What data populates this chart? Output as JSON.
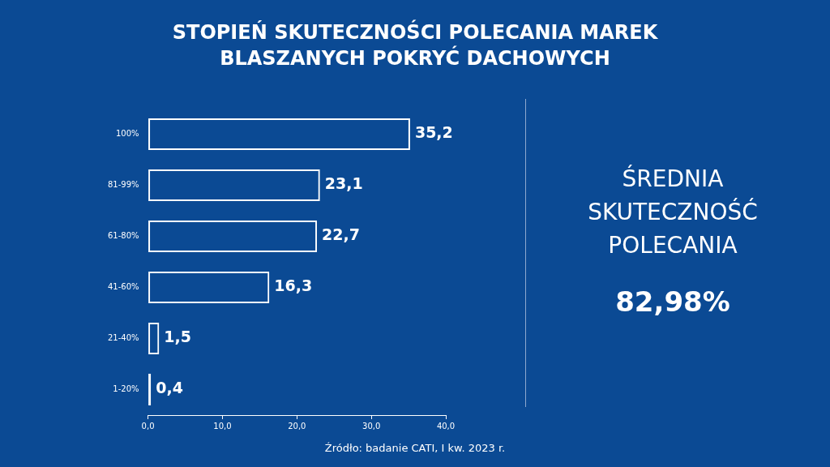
{
  "chart_data": {
    "type": "bar",
    "orientation": "horizontal",
    "title": "STOPIEŃ SKUTECZNOŚCI POLECANIA MAREK BLASZANYCH POKRYĆ DACHOWYCH",
    "categories": [
      "100%",
      "81-99%",
      "61-80%",
      "41-60%",
      "21-40%",
      "1-20%"
    ],
    "values": [
      35.2,
      23.1,
      22.7,
      16.3,
      1.5,
      0.4
    ],
    "value_labels": [
      "35,2",
      "23,1",
      "22,7",
      "16,3",
      "1,5",
      "0,4"
    ],
    "color": "#ffffff",
    "xlim": [
      0,
      40
    ],
    "xticks": [
      {
        "value": 0,
        "label": "0,0"
      },
      {
        "value": 10,
        "label": "10,0"
      },
      {
        "value": 20,
        "label": "20,0"
      },
      {
        "value": 30,
        "label": "30,0"
      },
      {
        "value": 40,
        "label": "40,0"
      }
    ],
    "grid": false,
    "annotations": [
      "ŚREDNIA SKUTECZNOŚĆ POLECANIA",
      "82,98%",
      "Źródło: badanie CATI, I kw. 2023 r."
    ]
  }
}
